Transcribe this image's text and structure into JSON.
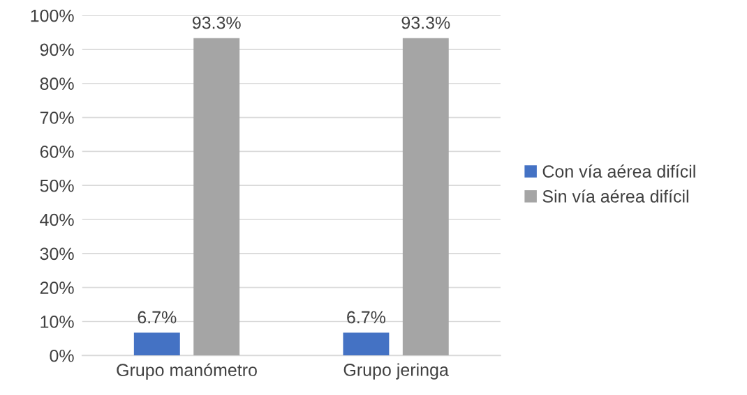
{
  "chart_data": {
    "type": "bar",
    "categories": [
      "Grupo manómetro",
      "Grupo jeringa"
    ],
    "series": [
      {
        "name": "Con vía aérea difícil",
        "color": "#4472c4",
        "values": [
          6.7,
          6.7
        ],
        "value_labels": [
          "6.7%",
          "6.7%"
        ]
      },
      {
        "name": "Sin vía aérea difícil",
        "color": "#a5a5a5",
        "values": [
          93.3,
          93.3
        ],
        "value_labels": [
          "93.3%",
          "93.3%"
        ]
      }
    ],
    "ylim": [
      0,
      100
    ],
    "yticks": [
      {
        "value": 0,
        "label": "0%"
      },
      {
        "value": 10,
        "label": "10%"
      },
      {
        "value": 20,
        "label": "20%"
      },
      {
        "value": 30,
        "label": "30%"
      },
      {
        "value": 40,
        "label": "40%"
      },
      {
        "value": 50,
        "label": "50%"
      },
      {
        "value": 60,
        "label": "60%"
      },
      {
        "value": 70,
        "label": "70%"
      },
      {
        "value": 80,
        "label": "80%"
      },
      {
        "value": 90,
        "label": "90%"
      },
      {
        "value": 100,
        "label": "100%"
      }
    ],
    "grid": "y",
    "legend": "right"
  }
}
